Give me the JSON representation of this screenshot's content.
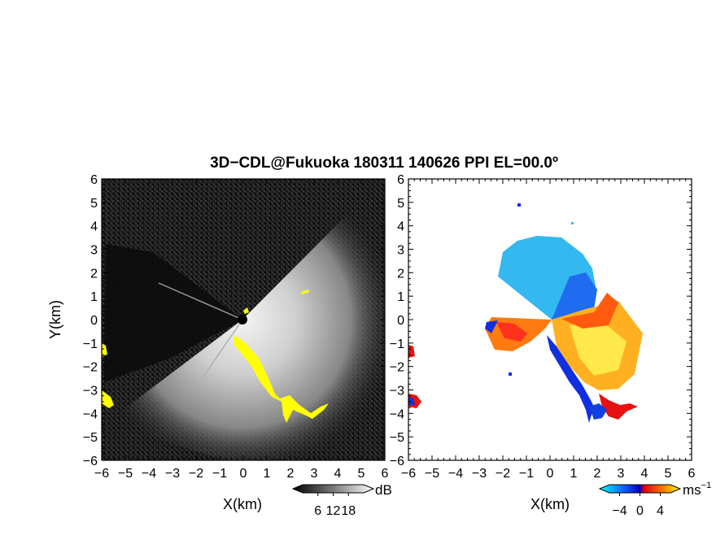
{
  "title": "3D−CDL@Fukuoka 180311 140626 PPI EL=00.0º",
  "chart_data": [
    {
      "type": "heatmap",
      "name": "reflectivity-ppi",
      "xlabel": "X(km)",
      "ylabel": "Y(km)",
      "xlim": [
        -6,
        6
      ],
      "ylim": [
        -6,
        6
      ],
      "x_ticks": [
        "−6",
        "−5",
        "−4",
        "−3",
        "−2",
        "−1",
        "0",
        "1",
        "2",
        "3",
        "4",
        "5",
        "6"
      ],
      "y_ticks": [
        "6",
        "5",
        "4",
        "3",
        "2",
        "1",
        "0",
        "−1",
        "−2",
        "−3",
        "−4",
        "−5",
        "−6"
      ],
      "colorbar": {
        "unit": "dB",
        "ticks": [
          "6",
          "12",
          "18"
        ],
        "range": [
          0,
          24
        ],
        "colors": [
          "#000000",
          "#ffffff"
        ]
      },
      "highlight_color": "#ffff00",
      "background_color": "#111111"
    },
    {
      "type": "heatmap",
      "name": "doppler-velocity-ppi",
      "xlabel": "X(km)",
      "xlim": [
        -6,
        6
      ],
      "ylim": [
        -6,
        6
      ],
      "x_ticks": [
        "−6",
        "−5",
        "−4",
        "−3",
        "−2",
        "−1",
        "0",
        "1",
        "2",
        "3",
        "4",
        "5",
        "6"
      ],
      "y_ticks": [
        "6",
        "5",
        "4",
        "3",
        "2",
        "1",
        "0",
        "−1",
        "−2",
        "−3",
        "−4",
        "−5",
        "−6"
      ],
      "colorbar": {
        "unit": "ms",
        "unit_exponent": "−1",
        "ticks": [
          "−4",
          "0",
          "4"
        ],
        "range": [
          -6,
          6
        ],
        "colors": [
          "#00ffff",
          "#0000ff",
          "#ff0000",
          "#ffff00"
        ]
      },
      "background_color": "#ffffff"
    }
  ]
}
